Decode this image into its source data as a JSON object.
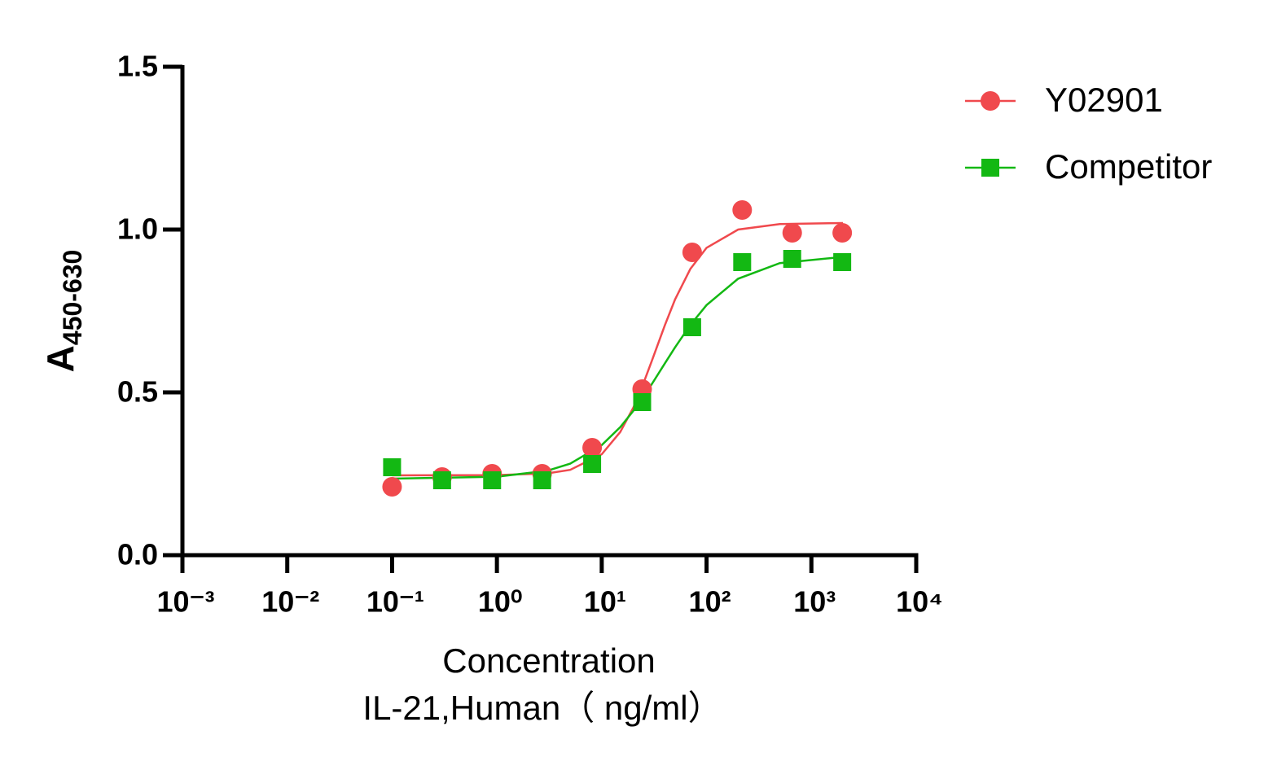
{
  "chart_data": {
    "type": "scatter",
    "x_label": [
      "Concentration",
      "IL-21,Human（ ng/ml）"
    ],
    "y_label": "A",
    "y_label_subscript": "450-630",
    "x_log": true,
    "xlim": [
      0.001,
      10000
    ],
    "xticks": [
      {
        "value": 0.001,
        "label": "10⁻³"
      },
      {
        "value": 0.01,
        "label": "10⁻²"
      },
      {
        "value": 0.1,
        "label": "10⁻¹"
      },
      {
        "value": 1,
        "label": "10⁰"
      },
      {
        "value": 10,
        "label": "10¹"
      },
      {
        "value": 100,
        "label": "10²"
      },
      {
        "value": 1000,
        "label": "10³"
      },
      {
        "value": 10000,
        "label": "10⁴"
      }
    ],
    "ylim": [
      0,
      1.5
    ],
    "yticks": [
      {
        "value": 0,
        "label": "0.0"
      },
      0.5,
      {
        "value": 1,
        "label": "1.0"
      },
      {
        "value": 1.5,
        "label": "1.5"
      }
    ],
    "legend": "upper-right",
    "x": [
      0.1,
      0.3,
      0.9,
      2.7,
      8.1,
      24.3,
      72.9,
      218.7,
      656.1,
      1968.3
    ],
    "series": [
      {
        "name": "Y02901",
        "color": "#f0494d",
        "marker": "circle",
        "values": [
          0.21,
          0.24,
          0.25,
          0.25,
          0.33,
          0.51,
          0.93,
          1.06,
          0.99,
          0.99
        ],
        "fit": {
          "x": [
            0.1,
            1,
            3,
            5,
            10,
            15,
            20,
            25,
            30,
            40,
            50,
            70,
            100,
            200,
            500,
            2000
          ],
          "values": [
            0.245,
            0.246,
            0.251,
            0.262,
            0.31,
            0.378,
            0.453,
            0.528,
            0.596,
            0.706,
            0.785,
            0.879,
            0.944,
            1.0,
            1.017,
            1.02
          ]
        }
      },
      {
        "name": "Competitor",
        "color": "#13b813",
        "marker": "square",
        "values": [
          0.27,
          0.23,
          0.23,
          0.23,
          0.28,
          0.47,
          0.7,
          0.9,
          0.91,
          0.9
        ],
        "fit": {
          "x": [
            0.1,
            1,
            3,
            5,
            10,
            15,
            20,
            25,
            30,
            40,
            50,
            70,
            100,
            200,
            500,
            2000
          ],
          "values": [
            0.235,
            0.241,
            0.259,
            0.281,
            0.338,
            0.393,
            0.443,
            0.487,
            0.525,
            0.589,
            0.638,
            0.707,
            0.768,
            0.849,
            0.897,
            0.916
          ]
        }
      }
    ]
  }
}
